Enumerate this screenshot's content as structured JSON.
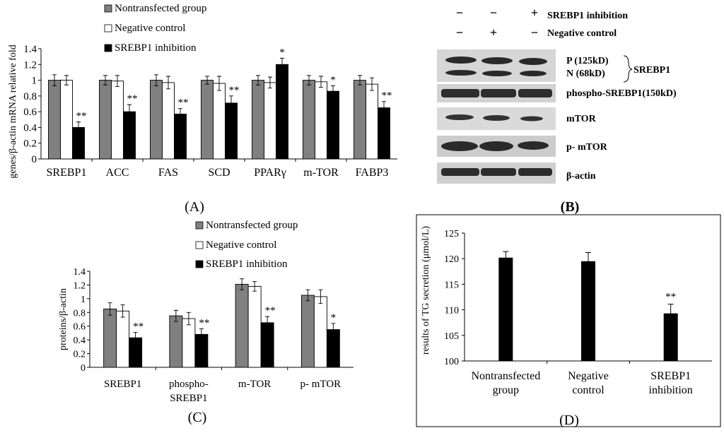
{
  "colors": {
    "nontransfected": "#808080",
    "negative": "#ffffff",
    "inhibition": "#000000"
  },
  "blot": {
    "header_rows": [
      {
        "marks": [
          "−",
          "−",
          "+"
        ],
        "label": "SREBP1  inhibition"
      },
      {
        "marks": [
          "−",
          "+",
          "−"
        ],
        "label": "Negative control"
      }
    ],
    "bands": [
      {
        "label_lines": [
          "P (125kD)",
          "N (68kD)"
        ],
        "group_label": "SREBP1"
      },
      {
        "label_lines": [
          "phospho-SREBP1(150kD)"
        ]
      },
      {
        "label_lines": [
          "mTOR"
        ]
      },
      {
        "label_lines": [
          "p- mTOR"
        ]
      },
      {
        "label_lines": [
          "β-actin"
        ]
      }
    ],
    "panel_label": "(B)"
  },
  "chart_data": [
    {
      "id": "A",
      "type": "bar",
      "panel_label": "(A)",
      "ylabel": "genes/β-actin mRNA relative fold",
      "ylim": [
        0,
        1.4
      ],
      "yticks": [
        "0",
        "0.2",
        "0.4",
        "0.6",
        "0.8",
        "1",
        "1.2",
        "1.4"
      ],
      "categories": [
        "SREBP1",
        "ACC",
        "FAS",
        "SCD",
        "PPARγ",
        "m-TOR",
        "FABP3"
      ],
      "series": [
        {
          "name": "Nontransfected group",
          "values": [
            1.0,
            1.0,
            1.0,
            1.0,
            1.0,
            1.0,
            1.0
          ],
          "errors": [
            0.07,
            0.06,
            0.07,
            0.05,
            0.06,
            0.06,
            0.06
          ]
        },
        {
          "name": "Negative control",
          "values": [
            1.0,
            0.99,
            0.97,
            0.96,
            0.97,
            0.98,
            0.95
          ],
          "errors": [
            0.06,
            0.07,
            0.08,
            0.09,
            0.07,
            0.07,
            0.08
          ]
        },
        {
          "name": "SREBP1 inhibition",
          "values": [
            0.4,
            0.6,
            0.57,
            0.71,
            1.2,
            0.86,
            0.65
          ],
          "errors": [
            0.07,
            0.09,
            0.07,
            0.09,
            0.08,
            0.07,
            0.08
          ]
        }
      ],
      "annotations": [
        "**",
        "**",
        "**",
        "**",
        "*",
        "*",
        "**"
      ]
    },
    {
      "id": "C",
      "type": "bar",
      "panel_label": "(C)",
      "ylabel": "proteins/β-actin",
      "ylim": [
        0,
        1.4
      ],
      "yticks": [
        "0",
        "0.2",
        "0.4",
        "0.6",
        "0.8",
        "1",
        "1.2",
        "1.4"
      ],
      "categories": [
        "SREBP1",
        "phospho-\nSREBP1",
        "m-TOR",
        "p- mTOR"
      ],
      "series": [
        {
          "name": "Nontransfected group",
          "values": [
            0.85,
            0.75,
            1.21,
            1.05
          ],
          "errors": [
            0.09,
            0.08,
            0.08,
            0.08
          ]
        },
        {
          "name": "Negative control",
          "values": [
            0.82,
            0.71,
            1.18,
            1.03
          ],
          "errors": [
            0.09,
            0.09,
            0.07,
            0.1
          ]
        },
        {
          "name": "SREBP1 inhibition",
          "values": [
            0.43,
            0.48,
            0.65,
            0.55
          ],
          "errors": [
            0.08,
            0.08,
            0.09,
            0.09
          ]
        }
      ],
      "annotations": [
        "**",
        "**",
        "**",
        "*"
      ]
    },
    {
      "id": "D",
      "type": "bar",
      "panel_label": "(D)",
      "ylabel": "results of TG secretion (μmol/L)",
      "ylim": [
        100,
        125
      ],
      "yticks": [
        "100",
        "105",
        "110",
        "115",
        "120",
        "125"
      ],
      "categories": [
        "Nontransfected\ngroup",
        "Negative\ncontrol",
        "SREBP1\ninhibition"
      ],
      "values": [
        120.2,
        119.5,
        109.3
      ],
      "errors": [
        1.2,
        1.7,
        1.8
      ],
      "annotations": [
        "",
        "",
        "**"
      ]
    }
  ]
}
